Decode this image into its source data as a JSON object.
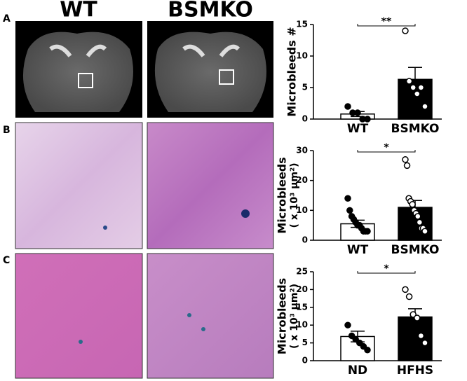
{
  "figure": {
    "panel_labels": [
      "A",
      "B",
      "C"
    ],
    "column_headers": [
      "WT",
      "BSMKO"
    ]
  },
  "chart_data": [
    {
      "type": "bar",
      "ylabel": "Microbleeds #",
      "categories": [
        "WT",
        "BSMKO"
      ],
      "values": [
        0.8,
        6.3
      ],
      "errors": [
        0.4,
        1.9
      ],
      "colors": [
        "#ffffff",
        "#000000"
      ],
      "point_colors": [
        "#000000",
        "#ffffff"
      ],
      "points": [
        [
          2,
          1,
          1,
          0,
          0
        ],
        [
          14,
          6,
          5,
          4,
          5,
          2
        ]
      ],
      "significance": "**",
      "ylim": [
        0,
        15
      ],
      "yticks": [
        0,
        5,
        10,
        15
      ]
    },
    {
      "type": "bar",
      "ylabel": "Microbleeds",
      "ylabel_unit": "( x 10³ μm²)",
      "categories": [
        "WT",
        "BSMKO"
      ],
      "values": [
        5.5,
        11
      ],
      "errors": [
        1.2,
        2.3
      ],
      "colors": [
        "#ffffff",
        "#000000"
      ],
      "point_colors": [
        "#000000",
        "#ffffff"
      ],
      "points": [
        [
          14,
          10,
          8,
          7,
          6,
          5,
          5,
          4,
          3,
          3,
          3
        ],
        [
          27,
          25,
          14,
          13,
          12,
          10,
          9,
          8,
          6,
          4,
          4,
          3
        ]
      ],
      "significance": "*",
      "ylim": [
        0,
        30
      ],
      "yticks": [
        0,
        10,
        20,
        30
      ]
    },
    {
      "type": "bar",
      "ylabel": "Microbleeds",
      "ylabel_unit": "( x 10³ μm²)",
      "categories": [
        "ND",
        "HFHS"
      ],
      "values": [
        6.8,
        12.3
      ],
      "errors": [
        1.5,
        2.3
      ],
      "colors": [
        "#ffffff",
        "#000000"
      ],
      "point_colors": [
        "#000000",
        "#ffffff"
      ],
      "points": [
        [
          10,
          7,
          6,
          5,
          4,
          3
        ],
        [
          20,
          18,
          13,
          12,
          7,
          5
        ]
      ],
      "significance": "*",
      "ylim": [
        0,
        25
      ],
      "yticks": [
        0,
        5,
        10,
        15,
        20,
        25
      ]
    }
  ]
}
